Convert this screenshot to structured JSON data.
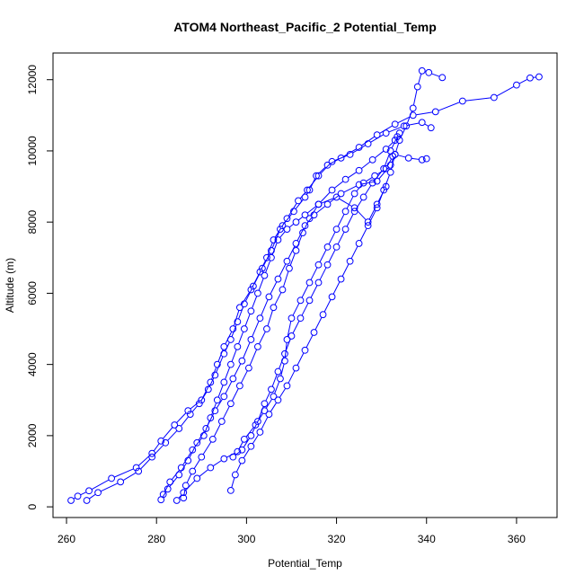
{
  "chart_data": {
    "type": "line",
    "title": "ATOM4 Northeast_Pacific_2 Potential_Temp",
    "xlabel": "Potential_Temp",
    "ylabel": "Altitude (m)",
    "xlim": [
      257,
      369
    ],
    "ylim": [
      -300,
      12750
    ],
    "xticks": [
      260,
      280,
      300,
      320,
      340,
      360
    ],
    "yticks": [
      0,
      2000,
      4000,
      6000,
      8000,
      10000,
      12000
    ],
    "grid": false,
    "line_style": "lines with open circle markers",
    "series_color": "#0000ff",
    "series": [
      {
        "points": [
          [
            261.0,
            180
          ],
          [
            262.5,
            300
          ],
          [
            265.0,
            450
          ],
          [
            270.0,
            800
          ],
          [
            275.5,
            1100
          ],
          [
            279.0,
            1500
          ],
          [
            281.0,
            1850
          ],
          [
            284.0,
            2300
          ],
          [
            287.0,
            2700
          ],
          [
            290.0,
            3000
          ],
          [
            292.0,
            3500
          ],
          [
            293.5,
            4000
          ],
          [
            295.0,
            4500
          ],
          [
            297.0,
            5000
          ],
          [
            298.5,
            5600
          ],
          [
            301.0,
            6100
          ],
          [
            303.0,
            6600
          ],
          [
            304.5,
            7000
          ],
          [
            306.0,
            7500
          ],
          [
            308.0,
            7900
          ],
          [
            310.5,
            8300
          ],
          [
            313.0,
            8700
          ],
          [
            314.0,
            8900
          ],
          [
            315.5,
            9300
          ],
          [
            318.0,
            9600
          ],
          [
            321.0,
            9800
          ],
          [
            325.0,
            10100
          ],
          [
            329.0,
            10450
          ],
          [
            333.0,
            10750
          ],
          [
            337.0,
            11000
          ],
          [
            342.0,
            11100
          ],
          [
            348.0,
            11400
          ],
          [
            355.0,
            11500
          ],
          [
            360.0,
            11850
          ],
          [
            363.0,
            12050
          ],
          [
            365.0,
            12080
          ]
        ]
      },
      {
        "points": [
          [
            264.5,
            180
          ],
          [
            267.0,
            400
          ],
          [
            272.0,
            700
          ],
          [
            276.0,
            1000
          ],
          [
            279.0,
            1400
          ],
          [
            282.0,
            1800
          ],
          [
            285.0,
            2200
          ],
          [
            287.5,
            2600
          ],
          [
            289.5,
            2900
          ],
          [
            291.5,
            3300
          ],
          [
            293.0,
            3700
          ],
          [
            295.0,
            4300
          ],
          [
            296.5,
            4700
          ],
          [
            298.0,
            5200
          ],
          [
            299.5,
            5700
          ],
          [
            301.5,
            6200
          ],
          [
            303.5,
            6700
          ],
          [
            305.5,
            7200
          ],
          [
            307.5,
            7800
          ],
          [
            309.0,
            8100
          ],
          [
            311.5,
            8600
          ],
          [
            313.5,
            8900
          ],
          [
            316.0,
            9300
          ],
          [
            319.0,
            9700
          ],
          [
            323.0,
            9900
          ],
          [
            327.0,
            10200
          ],
          [
            331.0,
            10500
          ],
          [
            335.0,
            10700
          ],
          [
            339.0,
            10800
          ],
          [
            341.0,
            10650
          ]
        ]
      },
      {
        "points": [
          [
            281.0,
            200
          ],
          [
            282.5,
            500
          ],
          [
            285.0,
            900
          ],
          [
            287.0,
            1300
          ],
          [
            289.0,
            1800
          ],
          [
            291.0,
            2200
          ],
          [
            293.0,
            2700
          ],
          [
            295.0,
            3100
          ],
          [
            297.0,
            3600
          ],
          [
            299.0,
            4100
          ],
          [
            301.0,
            4700
          ],
          [
            303.0,
            5300
          ],
          [
            305.0,
            5900
          ],
          [
            307.0,
            6400
          ],
          [
            309.0,
            6900
          ],
          [
            311.0,
            7400
          ],
          [
            313.0,
            7900
          ],
          [
            315.0,
            8200
          ],
          [
            318.0,
            8500
          ],
          [
            321.0,
            8800
          ],
          [
            325.0,
            9050
          ],
          [
            329.0,
            9150
          ],
          [
            332.0,
            9600
          ],
          [
            333.0,
            9900
          ],
          [
            336.0,
            9800
          ],
          [
            339.0,
            9750
          ],
          [
            340.0,
            9780
          ]
        ]
      },
      {
        "points": [
          [
            286.0,
            250
          ],
          [
            286.5,
            600
          ],
          [
            288.0,
            1000
          ],
          [
            290.0,
            1400
          ],
          [
            292.5,
            1900
          ],
          [
            294.5,
            2400
          ],
          [
            296.5,
            2900
          ],
          [
            298.5,
            3400
          ],
          [
            300.5,
            3900
          ],
          [
            302.5,
            4500
          ],
          [
            304.5,
            5000
          ],
          [
            306.0,
            5600
          ],
          [
            308.0,
            6100
          ],
          [
            309.5,
            6700
          ],
          [
            311.0,
            7200
          ],
          [
            312.5,
            7700
          ],
          [
            314.0,
            8100
          ],
          [
            316.0,
            8500
          ],
          [
            319.0,
            8900
          ],
          [
            322.0,
            9200
          ],
          [
            325.0,
            9450
          ],
          [
            328.0,
            9750
          ],
          [
            331.0,
            10050
          ],
          [
            333.0,
            10300
          ],
          [
            334.0,
            10500
          ]
        ]
      },
      {
        "points": [
          [
            296.5,
            460
          ],
          [
            297.5,
            900
          ],
          [
            299.0,
            1300
          ],
          [
            301.0,
            1700
          ],
          [
            303.0,
            2100
          ],
          [
            305.0,
            2600
          ],
          [
            307.0,
            3000
          ],
          [
            309.0,
            3400
          ],
          [
            311.0,
            3900
          ],
          [
            313.0,
            4400
          ],
          [
            315.0,
            4900
          ],
          [
            317.0,
            5400
          ],
          [
            319.0,
            5900
          ],
          [
            321.0,
            6400
          ],
          [
            323.0,
            6900
          ],
          [
            325.0,
            7400
          ],
          [
            327.0,
            7900
          ],
          [
            329.0,
            8400
          ],
          [
            330.5,
            8900
          ],
          [
            332.0,
            9400
          ],
          [
            333.0,
            9900
          ],
          [
            334.0,
            10300
          ],
          [
            335.5,
            10700
          ],
          [
            337.0,
            11200
          ],
          [
            338.0,
            11800
          ],
          [
            339.0,
            12250
          ],
          [
            340.5,
            12200
          ],
          [
            343.5,
            12060
          ]
        ]
      },
      {
        "points": [
          [
            284.5,
            180
          ],
          [
            286.0,
            400
          ],
          [
            289.0,
            800
          ],
          [
            292.0,
            1100
          ],
          [
            295.0,
            1350
          ],
          [
            298.0,
            1550
          ],
          [
            299.5,
            1900
          ],
          [
            302.0,
            2300
          ],
          [
            304.0,
            2700
          ],
          [
            306.0,
            3100
          ],
          [
            307.5,
            3600
          ],
          [
            308.5,
            4100
          ],
          [
            309.0,
            4700
          ],
          [
            310.0,
            5300
          ],
          [
            312.0,
            5800
          ],
          [
            314.0,
            6300
          ],
          [
            316.0,
            6800
          ],
          [
            318.0,
            7300
          ],
          [
            320.0,
            7800
          ],
          [
            322.0,
            8300
          ],
          [
            324.0,
            8800
          ],
          [
            326.0,
            9100
          ],
          [
            328.5,
            9300
          ],
          [
            331.0,
            9500
          ],
          [
            332.5,
            9850
          ]
        ]
      },
      {
        "points": [
          [
            281.5,
            350
          ],
          [
            283.0,
            700
          ],
          [
            285.5,
            1100
          ],
          [
            288.0,
            1600
          ],
          [
            290.5,
            2000
          ],
          [
            292.0,
            2500
          ],
          [
            293.5,
            3000
          ],
          [
            295.0,
            3500
          ],
          [
            296.5,
            4000
          ],
          [
            298.0,
            4500
          ],
          [
            299.5,
            5000
          ],
          [
            301.0,
            5500
          ],
          [
            302.5,
            6000
          ],
          [
            304.0,
            6500
          ],
          [
            305.5,
            7000
          ],
          [
            307.0,
            7500
          ],
          [
            309.0,
            7800
          ],
          [
            311.0,
            8000
          ],
          [
            313.0,
            8200
          ],
          [
            316.0,
            8500
          ],
          [
            320.0,
            8700
          ],
          [
            324.0,
            8400
          ],
          [
            327.0,
            8000
          ],
          [
            329.0,
            8500
          ],
          [
            331.0,
            9000
          ]
        ]
      },
      {
        "points": [
          [
            297.0,
            1400
          ],
          [
            299.0,
            1600
          ],
          [
            301.0,
            2000
          ],
          [
            302.5,
            2400
          ],
          [
            304.0,
            2900
          ],
          [
            305.5,
            3300
          ],
          [
            307.0,
            3800
          ],
          [
            308.5,
            4300
          ],
          [
            310.0,
            4800
          ],
          [
            312.0,
            5300
          ],
          [
            314.0,
            5800
          ],
          [
            316.0,
            6300
          ],
          [
            318.0,
            6800
          ],
          [
            320.0,
            7300
          ],
          [
            322.0,
            7800
          ],
          [
            324.0,
            8300
          ],
          [
            326.0,
            8700
          ],
          [
            328.0,
            9100
          ],
          [
            330.5,
            9500
          ],
          [
            332.0,
            10000
          ],
          [
            333.5,
            10400
          ]
        ]
      }
    ]
  }
}
